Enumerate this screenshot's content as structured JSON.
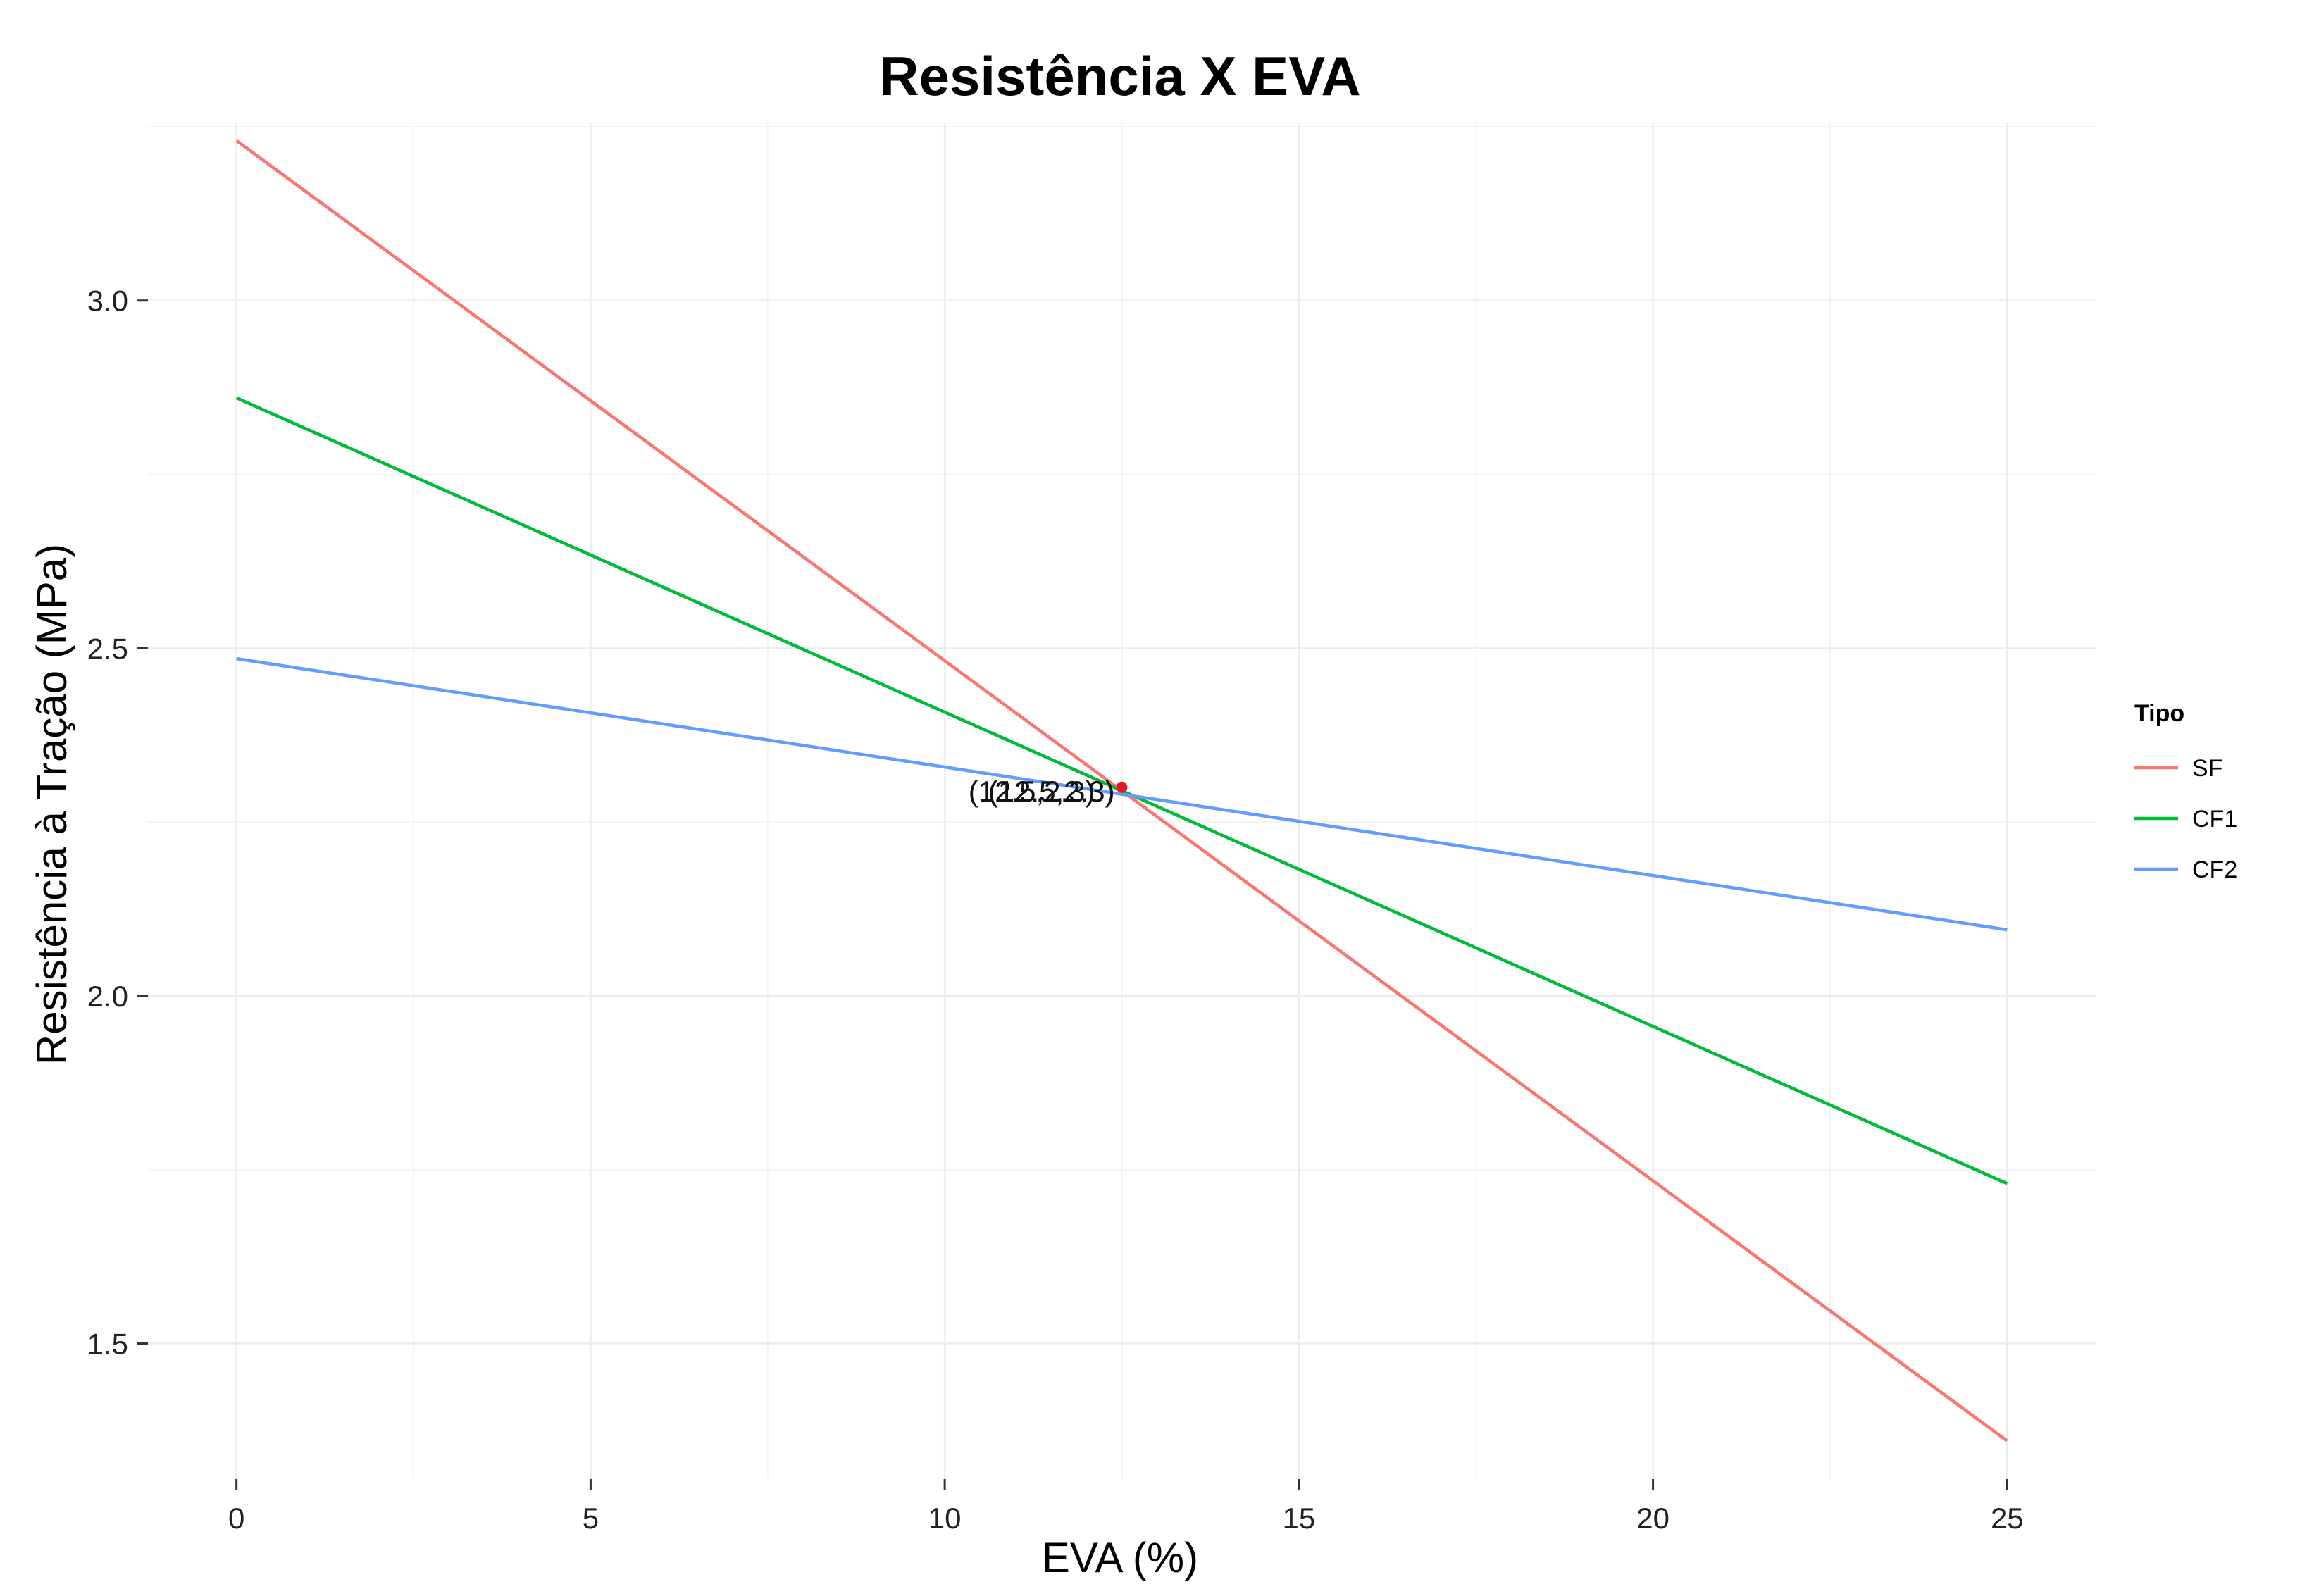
{
  "chart_data": {
    "type": "line",
    "title": "Resistência X EVA",
    "xlabel": "EVA (%)",
    "ylabel": "Resistência à Tração (MPa)",
    "xlim": [
      -1.25,
      26.25
    ],
    "ylim": [
      1.305,
      3.255
    ],
    "xticks": [
      0,
      5,
      10,
      15,
      20,
      25
    ],
    "yticks": [
      1.5,
      2.0,
      2.5,
      3.0
    ],
    "xtick_labels": [
      "0",
      "5",
      "10",
      "15",
      "20",
      "25"
    ],
    "ytick_labels": [
      "1.5",
      "2.0",
      "2.5",
      "3.0"
    ],
    "grid": true,
    "legend": {
      "title": "Tipo",
      "position": "right"
    },
    "series": [
      {
        "name": "SF",
        "color": "#F8766D",
        "x": [
          0,
          25
        ],
        "y": [
          3.23,
          1.36
        ]
      },
      {
        "name": "CF1",
        "color": "#00BA38",
        "x": [
          0,
          25
        ],
        "y": [
          2.86,
          1.73
        ]
      },
      {
        "name": "CF2",
        "color": "#619CFF",
        "x": [
          0,
          25
        ],
        "y": [
          2.485,
          2.095
        ]
      }
    ],
    "annotations": [
      {
        "label": "(12.5,2.3)",
        "x": 12.5,
        "y": 2.3,
        "color": "#e41a1c"
      },
      {
        "label": "(12.5,2.3)",
        "x": 12.5,
        "y": 2.3,
        "color": "#e41a1c"
      },
      {
        "label": "(12.5,2.3)",
        "x": 12.5,
        "y": 2.3,
        "color": "#e41a1c"
      }
    ]
  }
}
